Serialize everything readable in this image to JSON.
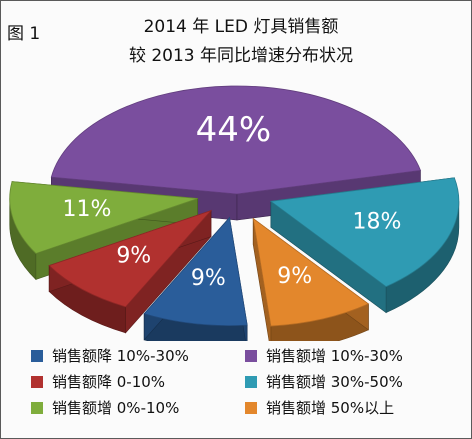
{
  "figure_label": "图 1",
  "title_line1": "2014 年 LED 灯具销售额",
  "title_line2": "较 2013 年同比增速分布状况",
  "chart_data": {
    "type": "pie",
    "title": "2014 年 LED 灯具销售额较 2013 年同比增速分布状况",
    "slices": [
      {
        "name": "销售额增 10%-30%",
        "label": "44%",
        "value": 44,
        "color": "#7a4e9e"
      },
      {
        "name": "销售额增 30%-50%",
        "label": "18%",
        "value": 18,
        "color": "#2f9bb3"
      },
      {
        "name": "销售额增 50%以上",
        "label": "9%",
        "value": 9,
        "color": "#e3872c"
      },
      {
        "name": "销售额降 10%-30%",
        "label": "9%",
        "value": 9,
        "color": "#2a5d9a"
      },
      {
        "name": "销售额降 0-10%",
        "label": "9%",
        "value": 9,
        "color": "#b1312f"
      },
      {
        "name": "销售额增 0%-10%",
        "label": "11%",
        "value": 11,
        "color": "#7fad3c"
      }
    ],
    "legend": [
      {
        "label": "销售额降 10%-30%",
        "color": "#2a5d9a"
      },
      {
        "label": "销售额增 10%-30%",
        "color": "#7a4e9e"
      },
      {
        "label": "销售额降 0-10%",
        "color": "#b1312f"
      },
      {
        "label": "销售额增 30%-50%",
        "color": "#2f9bb3"
      },
      {
        "label": "销售额增 0%-10%",
        "color": "#7fad3c"
      },
      {
        "label": "销售额增 50%以上",
        "color": "#e3872c"
      }
    ],
    "legend_position": "bottom"
  }
}
